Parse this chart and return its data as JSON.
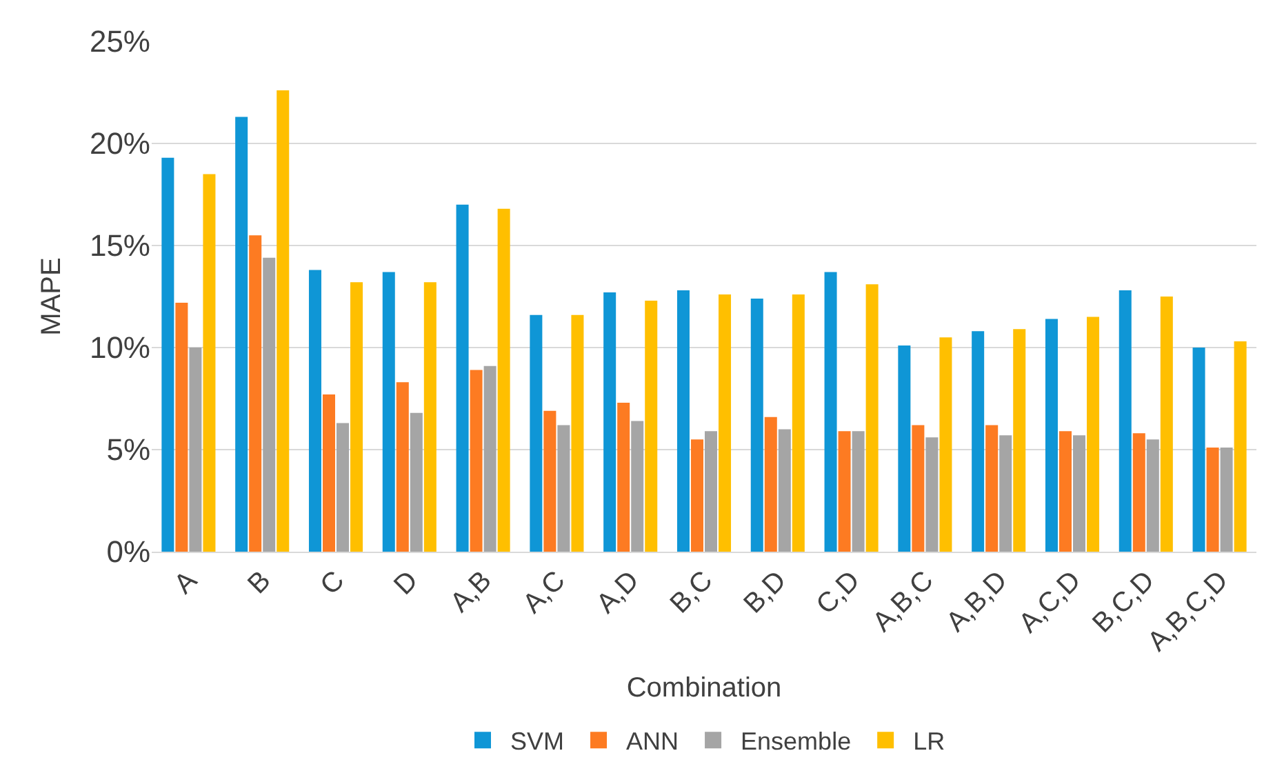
{
  "chart_data": {
    "type": "bar",
    "xlabel": "Combination",
    "ylabel": "MAPE",
    "categories": [
      "A",
      "B",
      "C",
      "D",
      "A,B",
      "A,C",
      "A,D",
      "B,C",
      "B,D",
      "C,D",
      "A,B,C",
      "A,B,D",
      "A,C,D",
      "B,C,D",
      "A,B,C,D"
    ],
    "series": [
      {
        "name": "SVM",
        "color": "#0f96d6",
        "values": [
          19.3,
          21.3,
          13.8,
          13.7,
          17.0,
          11.6,
          12.7,
          12.8,
          12.4,
          13.7,
          10.1,
          10.8,
          11.4,
          12.8,
          10.0
        ]
      },
      {
        "name": "ANN",
        "color": "#fd7b22",
        "values": [
          12.2,
          15.5,
          7.7,
          8.3,
          8.9,
          6.9,
          7.3,
          5.5,
          6.6,
          5.9,
          6.2,
          6.2,
          5.9,
          5.8,
          5.1
        ]
      },
      {
        "name": "Ensemble",
        "color": "#a5a5a5",
        "values": [
          10.0,
          14.4,
          6.3,
          6.8,
          9.1,
          6.2,
          6.4,
          5.9,
          6.0,
          5.9,
          5.6,
          5.7,
          5.7,
          5.5,
          5.1
        ]
      },
      {
        "name": "LR",
        "color": "#ffbf00",
        "values": [
          18.5,
          22.6,
          13.2,
          13.2,
          16.8,
          11.6,
          12.3,
          12.6,
          12.6,
          13.1,
          10.5,
          10.9,
          11.5,
          12.5,
          10.3
        ]
      }
    ],
    "ylim": [
      0,
      25
    ],
    "yticks": [
      {
        "value": 0,
        "label": "0%"
      },
      {
        "value": 5,
        "label": "5%"
      },
      {
        "value": 10,
        "label": "10%"
      },
      {
        "value": 15,
        "label": "15%"
      },
      {
        "value": 20,
        "label": "20%"
      },
      {
        "value": 25,
        "label": "25%"
      }
    ],
    "grid": "y",
    "legend": "bottom"
  }
}
